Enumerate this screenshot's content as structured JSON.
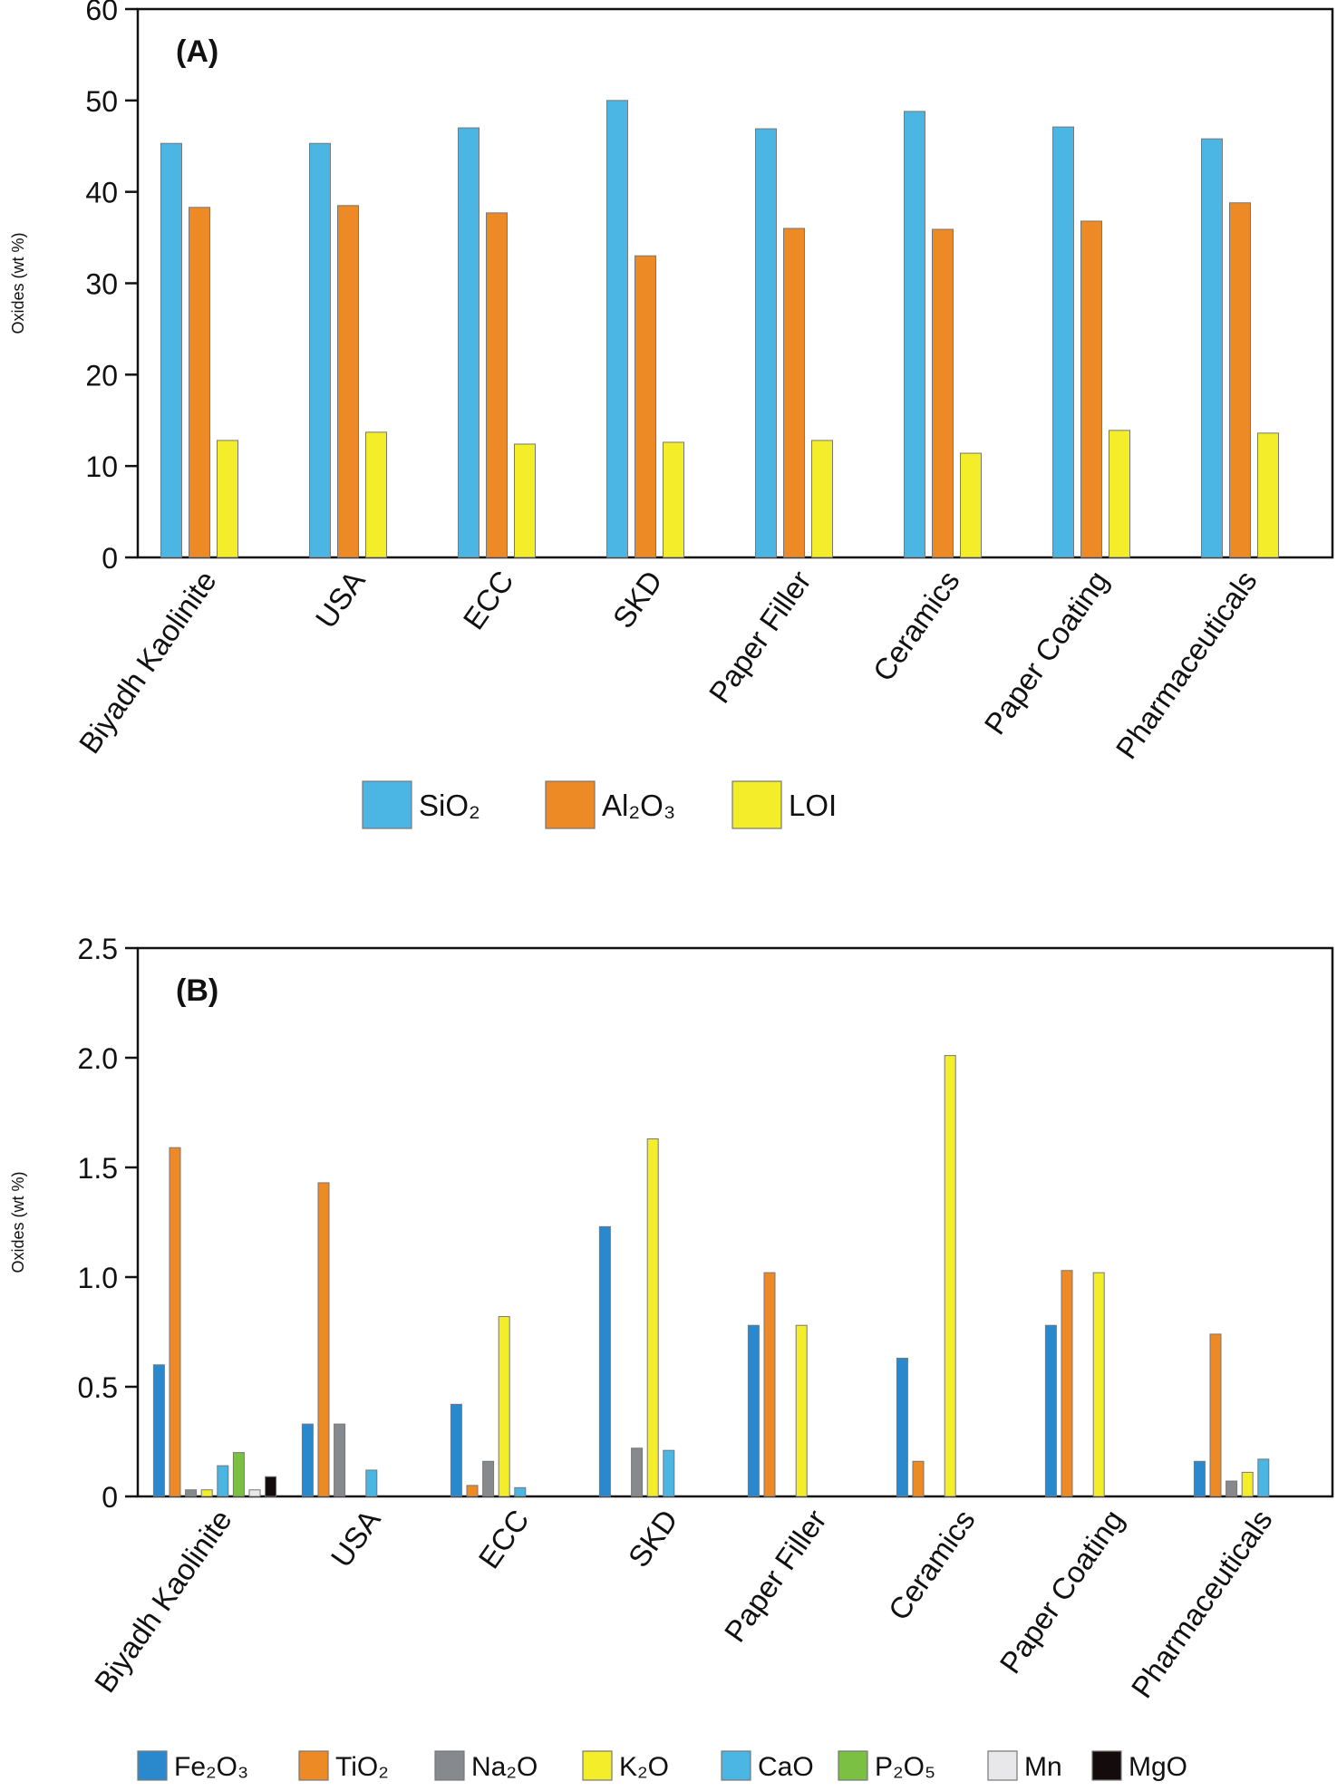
{
  "chart_data": [
    {
      "type": "bar",
      "panel_label": "(A)",
      "ylabel": "Oxides (wt %)",
      "ylim": [
        0,
        60
      ],
      "yticks": [
        "0",
        "10",
        "20",
        "30",
        "40",
        "50",
        "60"
      ],
      "ytick_values": [
        0,
        10,
        20,
        30,
        40,
        50,
        60
      ],
      "categories": [
        "Biyadh Kaolinite",
        "USA",
        "ECC",
        "SKD",
        "Paper Filler",
        "Ceramics",
        "Paper Coating",
        "Pharmaceuticals"
      ],
      "legend_position": "bottom",
      "series": [
        {
          "name": "SiO₂",
          "color": "#4bb5e3",
          "values": [
            45.3,
            45.3,
            47.0,
            50.0,
            46.9,
            48.8,
            47.1,
            45.8
          ]
        },
        {
          "name": "Al₂O₃",
          "color": "#ee8a25",
          "values": [
            38.3,
            38.5,
            37.7,
            33.0,
            36.0,
            35.9,
            36.8,
            38.8
          ]
        },
        {
          "name": "LOI",
          "color": "#f4ee2a",
          "values": [
            12.8,
            13.7,
            12.4,
            12.6,
            12.8,
            11.4,
            13.9,
            13.6
          ]
        }
      ]
    },
    {
      "type": "bar",
      "panel_label": "(B)",
      "ylabel": "Oxides (wt %)",
      "ylim": [
        0,
        2.5
      ],
      "yticks": [
        "0",
        "0.5",
        "1.0",
        "1.5",
        "2.0",
        "2.5"
      ],
      "ytick_values": [
        0,
        0.5,
        1.0,
        1.5,
        2.0,
        2.5
      ],
      "categories": [
        "Biyadh Kaolinite",
        "USA",
        "ECC",
        "SKD",
        "Paper Filler",
        "Ceramics",
        "Paper Coating",
        "Pharmaceuticals"
      ],
      "legend_position": "bottom",
      "series": [
        {
          "name": "Fe₂O₃",
          "color": "#2a88cc",
          "values": [
            0.6,
            0.33,
            0.42,
            1.23,
            0.78,
            0.63,
            0.78,
            0.16
          ]
        },
        {
          "name": "TiO₂",
          "color": "#ee8a25",
          "values": [
            1.59,
            1.43,
            0.05,
            null,
            1.02,
            0.16,
            1.03,
            0.74
          ]
        },
        {
          "name": "Na₂O",
          "color": "#868a8e",
          "values": [
            0.03,
            0.33,
            0.16,
            0.22,
            null,
            null,
            null,
            0.07
          ]
        },
        {
          "name": "K₂O",
          "color": "#f4ee2a",
          "values": [
            0.03,
            null,
            0.82,
            1.63,
            0.78,
            2.01,
            1.02,
            0.11
          ]
        },
        {
          "name": "CaO",
          "color": "#4bb5e3",
          "values": [
            0.14,
            0.12,
            0.04,
            0.21,
            null,
            null,
            null,
            0.17
          ]
        },
        {
          "name": "P₂O₅",
          "color": "#7bc043",
          "values": [
            0.2,
            null,
            null,
            null,
            null,
            null,
            null,
            null
          ]
        },
        {
          "name": "Mn",
          "color": "#e8e8ea",
          "values": [
            0.03,
            null,
            null,
            null,
            null,
            null,
            null,
            null
          ]
        },
        {
          "name": "MgO",
          "color": "#140c0c",
          "values": [
            0.09,
            null,
            null,
            null,
            null,
            null,
            null,
            null
          ]
        }
      ]
    }
  ]
}
